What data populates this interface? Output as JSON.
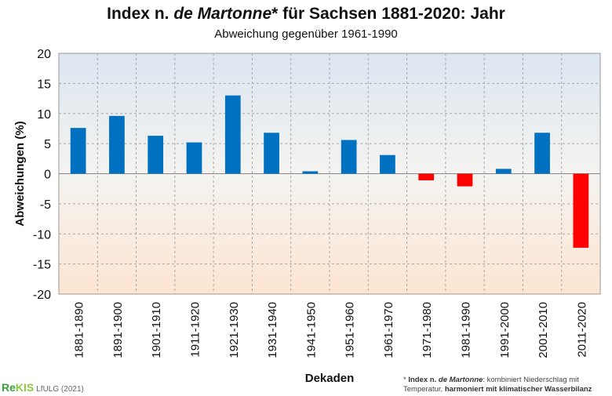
{
  "header": {
    "title_prefix": "Index n. ",
    "title_italic": "de Martonne",
    "title_suffix": "* für Sachsen 1881-2020: Jahr",
    "subtitle": "Abweichung  gegenüber  1961-1990"
  },
  "brand": {
    "name_part1": "Re",
    "name_part2": "KIS",
    "org": "LfULG (2021)"
  },
  "footnote": {
    "marker": "* ",
    "bold1": "Index n. ",
    "italic": "de Martonne",
    "text1": ": kombiniert Niederschlag mit Temperatur, ",
    "bold2": "harmoniert mit klimatischer Wasserbilanz"
  },
  "colors": {
    "positive": "#0070c0",
    "negative": "#ff0000",
    "plot_top": "#dce6f1",
    "plot_bottom": "#fde5d2"
  },
  "chart_data": {
    "type": "bar",
    "xlabel": "Dekaden",
    "ylabel": "Abweichungen  (%)",
    "ylim": [
      -20,
      20
    ],
    "yticks": [
      20,
      15,
      10,
      5,
      0,
      -5,
      -10,
      -15,
      -20
    ],
    "grid": true,
    "categories": [
      "1881-1890",
      "1891-1900",
      "1901-1910",
      "1911-1920",
      "1921-1930",
      "1931-1940",
      "1941-1950",
      "1951-1960",
      "1961-1970",
      "1971-1980",
      "1981-1990",
      "1991-2000",
      "2001-2010",
      "2011-2020"
    ],
    "values": [
      7.6,
      9.6,
      6.3,
      5.2,
      13.0,
      6.8,
      0.4,
      5.6,
      3.1,
      -1.1,
      -2.1,
      0.8,
      6.8,
      -12.3
    ]
  }
}
